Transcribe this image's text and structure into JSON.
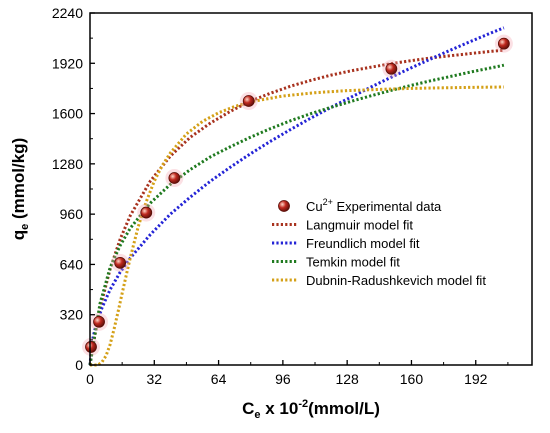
{
  "chart_data": {
    "type": "scatter",
    "xlabel": {
      "main": "C",
      "sub": "e",
      "mid": " x 10",
      "sup": "-2",
      "tail": "(mmol/L)"
    },
    "ylabel": {
      "main": "q",
      "sub": "e",
      "tail": " (mmol/kg)"
    },
    "xlim": [
      0,
      220
    ],
    "ylim": [
      0,
      2240
    ],
    "xticks": [
      0,
      32,
      64,
      96,
      128,
      160,
      192
    ],
    "yticks": [
      0,
      320,
      640,
      960,
      1280,
      1600,
      1920,
      2240
    ],
    "grid": false,
    "legend_position": "center-right",
    "experimental": {
      "name": {
        "main": "Cu",
        "sup": "2+",
        "tail": " Experimental data"
      },
      "color": "#c0291f",
      "x": [
        0.5,
        4.5,
        15,
        28,
        42,
        79,
        150,
        206
      ],
      "y": [
        115,
        275,
        650,
        970,
        1190,
        1680,
        1885,
        2045
      ]
    },
    "series": [
      {
        "name": "Langmuir model fit",
        "color": "#a8321e",
        "x": [
          0,
          2,
          5,
          10,
          15,
          20,
          30,
          40,
          50,
          60,
          70,
          80,
          90,
          100,
          110,
          120,
          130,
          140,
          150,
          160,
          170,
          180,
          190,
          200,
          206
        ],
        "y": [
          0,
          160,
          360,
          610,
          800,
          950,
          1170,
          1330,
          1450,
          1540,
          1615,
          1680,
          1730,
          1775,
          1812,
          1845,
          1872,
          1896,
          1918,
          1937,
          1954,
          1969,
          1983,
          1996,
          2003
        ]
      },
      {
        "name": "Freundlich model fit",
        "color": "#2424d6",
        "x": [
          0,
          1,
          3,
          6,
          10,
          15,
          20,
          30,
          40,
          50,
          60,
          70,
          80,
          90,
          100,
          110,
          120,
          130,
          140,
          150,
          160,
          170,
          180,
          190,
          200,
          206
        ],
        "y": [
          0,
          145,
          255,
          365,
          480,
          590,
          680,
          830,
          960,
          1070,
          1170,
          1260,
          1345,
          1425,
          1500,
          1572,
          1640,
          1705,
          1770,
          1832,
          1892,
          1950,
          2007,
          2062,
          2115,
          2146
        ]
      },
      {
        "name": "Temkin model fit",
        "color": "#1f7a1f",
        "x": [
          0,
          2,
          5,
          10,
          15,
          20,
          30,
          40,
          50,
          60,
          70,
          80,
          90,
          100,
          110,
          120,
          130,
          140,
          150,
          160,
          170,
          180,
          190,
          200,
          206
        ],
        "y": [
          0,
          160,
          390,
          620,
          760,
          870,
          1030,
          1150,
          1245,
          1325,
          1390,
          1450,
          1505,
          1555,
          1600,
          1640,
          1678,
          1714,
          1748,
          1780,
          1810,
          1838,
          1866,
          1892,
          1908
        ]
      },
      {
        "name": "Dubnin-Radushkevich model fit",
        "color": "#d4a017",
        "x": [
          0,
          4,
          6,
          8,
          10,
          12,
          14,
          16,
          18,
          20,
          24,
          28,
          32,
          36,
          40,
          48,
          56,
          64,
          72,
          80,
          96,
          112,
          128,
          144,
          160,
          176,
          192,
          206
        ],
        "y": [
          0,
          0,
          20,
          60,
          130,
          230,
          340,
          455,
          570,
          680,
          880,
          1040,
          1170,
          1270,
          1350,
          1470,
          1550,
          1605,
          1645,
          1675,
          1712,
          1733,
          1746,
          1754,
          1760,
          1764,
          1767,
          1769
        ]
      }
    ]
  }
}
